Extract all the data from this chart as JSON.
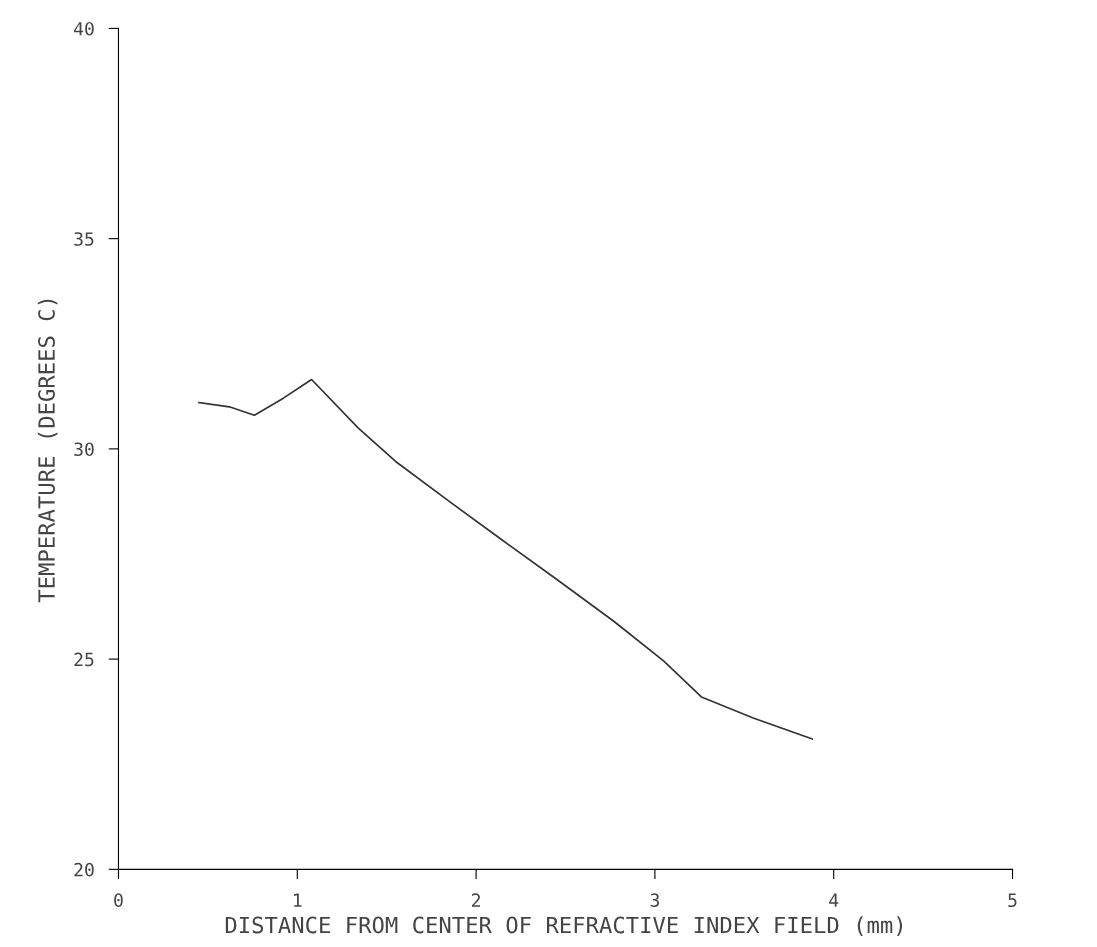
{
  "chart_data": {
    "type": "line",
    "xlabel": "DISTANCE FROM CENTER OF REFRACTIVE INDEX FIELD (mm)",
    "ylabel": "TEMPERATURE (DEGREES C)",
    "x": [
      0.45,
      0.62,
      0.76,
      0.92,
      1.08,
      1.34,
      1.55,
      1.85,
      2.14,
      2.45,
      2.77,
      3.05,
      3.26,
      3.55,
      3.88
    ],
    "series": [
      {
        "color": "#333333",
        "values": [
          31.1,
          31.0,
          30.8,
          31.2,
          31.65,
          30.5,
          29.7,
          28.75,
          27.85,
          26.9,
          25.9,
          24.95,
          24.1,
          23.6,
          23.1
        ]
      }
    ],
    "xlim": [
      0,
      5
    ],
    "ylim": [
      20,
      40
    ],
    "xticks": [
      0,
      1,
      2,
      3,
      4,
      5
    ],
    "yticks": [
      20,
      25,
      30,
      35,
      40
    ],
    "grid": false,
    "legend": false,
    "marker": "none",
    "line_style": "solid"
  }
}
